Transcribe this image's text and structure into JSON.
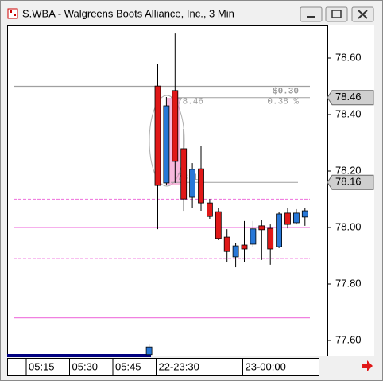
{
  "window_title": "S.WBA - Walgreens Boots Alliance, Inc., 3 Min",
  "chart_data": {
    "type": "candlestick",
    "categories": [
      "05:15",
      null,
      null,
      null,
      null,
      "05:30",
      null,
      null,
      null,
      null,
      "05:45",
      null,
      null,
      null,
      null,
      "22-23:30",
      null,
      null,
      null,
      null,
      null,
      null,
      null,
      null,
      null,
      "23-00:00",
      null,
      null,
      null,
      null,
      null,
      null,
      null
    ],
    "open": [
      null,
      null,
      null,
      null,
      null,
      null,
      null,
      null,
      null,
      null,
      null,
      null,
      null,
      null,
      77.55,
      78.501,
      78.158,
      78.485,
      78.279,
      78.107,
      78.208,
      78.087,
      78.056,
      77.966,
      77.896,
      77.938,
      77.941,
      78.006,
      77.997,
      77.932,
      78.051,
      78.017,
      78.037
    ],
    "high": [
      null,
      null,
      null,
      null,
      null,
      null,
      null,
      null,
      null,
      null,
      null,
      null,
      null,
      null,
      77.585,
      78.58,
      78.462,
      78.687,
      78.349,
      78.228,
      78.29,
      78.101,
      78.068,
      77.994,
      77.946,
      78.023,
      78.023,
      78.028,
      78.011,
      78.054,
      78.068,
      78.065,
      78.068
    ],
    "low": [
      null,
      null,
      null,
      null,
      null,
      null,
      null,
      null,
      null,
      null,
      null,
      null,
      null,
      null,
      77.549,
      77.994,
      78.149,
      78.158,
      78.059,
      78.068,
      78.059,
      78.031,
      77.955,
      77.876,
      77.859,
      77.876,
      77.932,
      77.885,
      77.868,
      77.927,
      77.997,
      78.011,
      78.006
    ],
    "close": [
      null,
      null,
      null,
      null,
      null,
      null,
      null,
      null,
      null,
      null,
      null,
      null,
      null,
      null,
      77.577,
      78.149,
      78.431,
      78.234,
      78.101,
      78.206,
      78.087,
      78.039,
      77.961,
      77.915,
      77.935,
      77.924,
      77.995,
      77.992,
      77.924,
      78.048,
      78.011,
      78.051,
      78.059
    ],
    "up_color": "#2878d8",
    "down_color": "#e01818",
    "ylim": [
      77.5465,
      78.7155
    ],
    "yticks": [
      {
        "value": 77.6,
        "label": "77.60"
      },
      {
        "value": 77.8,
        "label": "77.80"
      },
      {
        "value": 78.0,
        "label": "78.00"
      },
      {
        "value": 78.2,
        "label": "78.20"
      },
      {
        "value": 78.4,
        "label": "78.40"
      },
      {
        "value": 78.6,
        "label": "78.60"
      }
    ],
    "levels": [
      {
        "value": 78.5,
        "color": "#a0a0a0",
        "style": "solid"
      },
      {
        "value": 78.1,
        "color": "#f080e0",
        "style": "dashed"
      },
      {
        "value": 78.0,
        "color": "#f080e0",
        "style": "solid"
      },
      {
        "value": 77.89,
        "color": "#f080e0",
        "style": "dashed"
      },
      {
        "value": 77.68,
        "color": "#f080e0",
        "style": "solid"
      }
    ],
    "price_markers": [
      {
        "value": 78.46,
        "label": "78.46"
      },
      {
        "value": 78.16,
        "label": "78.16"
      }
    ],
    "measure": {
      "change": {
        "value": 0.3,
        "label": "$0.30"
      },
      "percent": {
        "value": 0.38,
        "label": "0.38 %"
      }
    }
  }
}
